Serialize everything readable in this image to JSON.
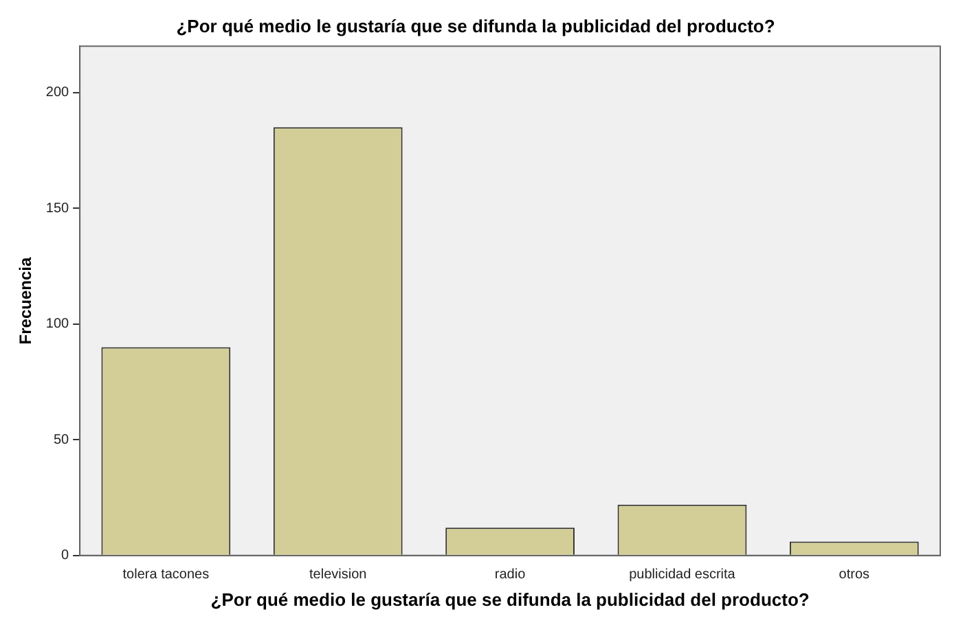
{
  "chart_data": {
    "type": "bar",
    "title": "¿Por qué medio le gustaría que se difunda la publicidad del producto?",
    "xlabel": "¿Por qué medio le gustaría que se difunda la publicidad del producto?",
    "ylabel": "Frecuencia",
    "categories": [
      "tolera tacones",
      "television",
      "radio",
      "publicidad escrita",
      "otros"
    ],
    "values": [
      90,
      185,
      12,
      22,
      6
    ],
    "color": "#d3ce97",
    "ylim": [
      0,
      220
    ],
    "yticks": [
      0,
      50,
      100,
      150,
      200
    ],
    "grid": false,
    "legend": false
  }
}
